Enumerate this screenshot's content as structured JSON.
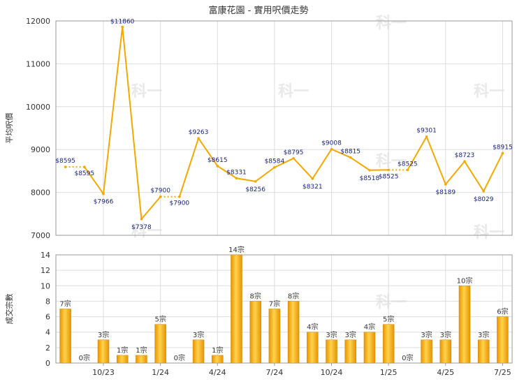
{
  "chart_data": [
    {
      "type": "line",
      "title": "富康花園 - 實用呎價走勢",
      "ylabel": "平均呎價",
      "ylim": [
        7000,
        12000
      ],
      "yticks": [
        7000,
        8000,
        9000,
        10000,
        11000,
        12000
      ],
      "values": [
        8595,
        8595,
        7966,
        11860,
        7378,
        7900,
        7900,
        9263,
        8615,
        8331,
        8256,
        8584,
        8795,
        8321,
        9008,
        8815,
        8518,
        8525,
        8525,
        9301,
        8189,
        8723,
        8029,
        8915
      ],
      "labels": [
        "$8595",
        "$8595",
        "$7966",
        "$11860",
        "$7378",
        "$7900",
        "$7900",
        "$9263",
        "$8615",
        "$8331",
        "$8256",
        "$8584",
        "$8795",
        "$8321",
        "$9008",
        "$8815",
        "$8518",
        "$8525",
        "$8525",
        "$9301",
        "$8189",
        "$8723",
        "$8029",
        "$8915"
      ],
      "line_color": "#f5a800",
      "dotted_segments": [
        [
          0,
          1
        ],
        [
          5,
          6
        ],
        [
          17,
          18
        ]
      ]
    },
    {
      "type": "bar",
      "ylabel": "成交宗數",
      "ylim": [
        0,
        14
      ],
      "yticks": [
        0,
        2,
        4,
        6,
        8,
        10,
        12,
        14
      ],
      "values": [
        7,
        0,
        3,
        1,
        1,
        5,
        0,
        3,
        1,
        14,
        8,
        7,
        8,
        4,
        3,
        3,
        4,
        5,
        0,
        3,
        3,
        10,
        3,
        6
      ],
      "labels": [
        "7宗",
        "0宗",
        "3宗",
        "1宗",
        "1宗",
        "5宗",
        "0宗",
        "3宗",
        "1宗",
        "14宗",
        "8宗",
        "7宗",
        "8宗",
        "4宗",
        "3宗",
        "3宗",
        "4宗",
        "5宗",
        "0宗",
        "3宗",
        "3宗",
        "10宗",
        "3宗",
        "6宗"
      ],
      "x_ticks": [
        {
          "index": 2,
          "label": "10/23"
        },
        {
          "index": 5,
          "label": "1/24"
        },
        {
          "index": 8,
          "label": "4/24"
        },
        {
          "index": 11,
          "label": "7/24"
        },
        {
          "index": 14,
          "label": "10/24"
        },
        {
          "index": 17,
          "label": "1/25"
        },
        {
          "index": 20,
          "label": "4/25"
        },
        {
          "index": 23,
          "label": "7/25"
        }
      ],
      "bar_color": "#f5a800"
    }
  ],
  "watermark": "科一"
}
